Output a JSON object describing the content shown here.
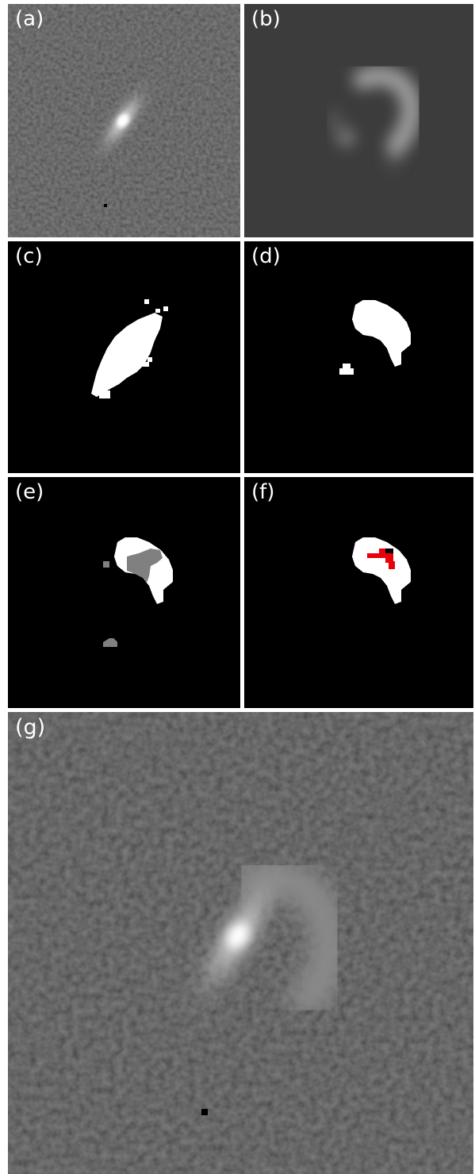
{
  "panels": [
    {
      "id": "a",
      "label": "(a)",
      "label_color": "#ffffff",
      "content": "galaxy-image"
    },
    {
      "id": "b",
      "label": "(b)",
      "label_color": "#ffffff",
      "content": "residual-model"
    },
    {
      "id": "c",
      "label": "(c)",
      "label_color": "#ffffff",
      "content": "mask-galaxy"
    },
    {
      "id": "d",
      "label": "(d)",
      "label_color": "#ffffff",
      "content": "mask-arc"
    },
    {
      "id": "e",
      "label": "(e)",
      "label_color": "#ffffff",
      "content": "mask-overlap"
    },
    {
      "id": "f",
      "label": "(f)",
      "label_color": "#ffffff",
      "content": "mask-skeleton"
    },
    {
      "id": "g",
      "label": "(g)",
      "label_color": "#ffffff",
      "content": "galaxy-image-large"
    }
  ],
  "colors": {
    "frame": "#ffffff",
    "mask_foreground": "#ffffff",
    "mask_background": "#000000",
    "overlap_gray": "#808080",
    "highlight_red": "#e8000b",
    "noise_base": "#3f3f3f",
    "model_background": "#3c3c3c"
  }
}
